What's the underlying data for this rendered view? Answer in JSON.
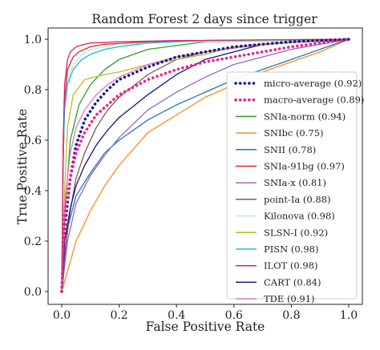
{
  "chart_data": {
    "type": "line",
    "title": "Random Forest 2 days since trigger",
    "xlabel": "False Positive Rate",
    "ylabel": "True Positive Rate",
    "xlim": [
      0.0,
      1.0
    ],
    "ylim": [
      0.0,
      1.0
    ],
    "xticks": [
      "0.0",
      "0.2",
      "0.4",
      "0.6",
      "0.8",
      "1.0"
    ],
    "yticks": [
      "0.0",
      "0.2",
      "0.4",
      "0.6",
      "0.8",
      "1.0"
    ],
    "grid": false,
    "legend_position": "lower-right",
    "series": [
      {
        "name": "micro-average (0.92)",
        "color": "#1a1a8c",
        "style": "dotted",
        "x": [
          0,
          0.01,
          0.03,
          0.05,
          0.08,
          0.12,
          0.16,
          0.2,
          0.3,
          0.4,
          0.5,
          0.6,
          0.8,
          1.0
        ],
        "y": [
          0,
          0.25,
          0.45,
          0.58,
          0.68,
          0.75,
          0.8,
          0.84,
          0.89,
          0.93,
          0.95,
          0.97,
          0.99,
          1.0
        ]
      },
      {
        "name": "macro-average (0.89)",
        "color": "#ee2288",
        "style": "dotted",
        "x": [
          0,
          0.01,
          0.03,
          0.05,
          0.08,
          0.12,
          0.16,
          0.2,
          0.3,
          0.4,
          0.5,
          0.6,
          0.8,
          1.0
        ],
        "y": [
          0,
          0.3,
          0.45,
          0.55,
          0.63,
          0.7,
          0.74,
          0.78,
          0.84,
          0.88,
          0.91,
          0.93,
          0.97,
          1.0
        ]
      },
      {
        "name": "SNIa-norm (0.94)",
        "color": "#2ca02c",
        "style": "solid",
        "x": [
          0,
          0.01,
          0.03,
          0.06,
          0.1,
          0.15,
          0.2,
          0.3,
          0.5,
          1.0
        ],
        "y": [
          0,
          0.3,
          0.6,
          0.74,
          0.82,
          0.88,
          0.92,
          0.96,
          0.99,
          1.0
        ]
      },
      {
        "name": "SNIbc (0.75)",
        "color": "#ff8c1a",
        "style": "solid",
        "x": [
          0,
          0.02,
          0.05,
          0.1,
          0.15,
          0.2,
          0.3,
          0.4,
          0.5,
          0.6,
          0.7,
          0.8,
          0.9,
          1.0
        ],
        "y": [
          0,
          0.08,
          0.2,
          0.32,
          0.42,
          0.5,
          0.63,
          0.7,
          0.77,
          0.82,
          0.87,
          0.91,
          0.95,
          1.0
        ]
      },
      {
        "name": "SNII (0.78)",
        "color": "#1f77b4",
        "style": "solid",
        "x": [
          0,
          0.02,
          0.05,
          0.1,
          0.15,
          0.2,
          0.3,
          0.4,
          0.5,
          0.6,
          0.7,
          0.8,
          0.9,
          1.0
        ],
        "y": [
          0,
          0.25,
          0.38,
          0.47,
          0.55,
          0.6,
          0.68,
          0.74,
          0.79,
          0.84,
          0.88,
          0.92,
          0.96,
          1.0
        ]
      },
      {
        "name": "SNIa-91bg (0.97)",
        "color": "#d62728",
        "style": "solid",
        "x": [
          0,
          0.005,
          0.01,
          0.02,
          0.04,
          0.06,
          0.1,
          0.15,
          0.3,
          0.5,
          1.0
        ],
        "y": [
          0,
          0.5,
          0.75,
          0.88,
          0.93,
          0.95,
          0.97,
          0.98,
          0.99,
          0.995,
          1.0
        ]
      },
      {
        "name": "SNIa-x (0.81)",
        "color": "#9467bd",
        "style": "solid",
        "x": [
          0,
          0.02,
          0.05,
          0.1,
          0.15,
          0.2,
          0.3,
          0.4,
          0.5,
          0.6,
          0.7,
          0.8,
          0.9,
          1.0
        ],
        "y": [
          0,
          0.2,
          0.35,
          0.46,
          0.54,
          0.61,
          0.72,
          0.79,
          0.85,
          0.9,
          0.93,
          0.96,
          0.98,
          1.0
        ]
      },
      {
        "name": "point-Ia (0.88)",
        "color": "#8c564b",
        "style": "solid",
        "x": [
          0,
          0.01,
          0.03,
          0.05,
          0.08,
          0.12,
          0.16,
          0.2,
          0.3,
          0.4,
          0.5,
          0.7,
          1.0
        ],
        "y": [
          0,
          0.15,
          0.32,
          0.45,
          0.55,
          0.65,
          0.72,
          0.77,
          0.86,
          0.92,
          0.95,
          0.98,
          1.0
        ]
      },
      {
        "name": "Kilonova (0.98)",
        "color": "#b8f0c8",
        "style": "solid",
        "x": [
          0,
          0.005,
          0.01,
          0.02,
          0.04,
          0.07,
          0.1,
          0.2,
          0.4,
          1.0
        ],
        "y": [
          0,
          0.55,
          0.72,
          0.83,
          0.9,
          0.94,
          0.96,
          0.98,
          0.99,
          1.0
        ]
      },
      {
        "name": "SLSN-I (0.92)",
        "color": "#bcbd22",
        "style": "solid",
        "x": [
          0,
          0.01,
          0.02,
          0.04,
          0.08,
          0.15,
          0.2,
          0.3,
          0.5,
          0.6,
          0.8,
          1.0
        ],
        "y": [
          0,
          0.4,
          0.65,
          0.78,
          0.84,
          0.86,
          0.87,
          0.9,
          0.94,
          0.97,
          0.99,
          1.0
        ]
      },
      {
        "name": "PISN (0.98)",
        "color": "#17becf",
        "style": "solid",
        "x": [
          0,
          0.005,
          0.01,
          0.02,
          0.04,
          0.07,
          0.1,
          0.15,
          0.2,
          0.3,
          0.5,
          1.0
        ],
        "y": [
          0,
          0.55,
          0.72,
          0.82,
          0.88,
          0.92,
          0.94,
          0.96,
          0.97,
          0.985,
          0.995,
          1.0
        ]
      },
      {
        "name": "ILOT (0.98)",
        "color": "#e8186e",
        "style": "solid",
        "x": [
          0,
          0.005,
          0.01,
          0.02,
          0.03,
          0.05,
          0.08,
          0.1,
          0.2,
          0.4,
          1.0
        ],
        "y": [
          0,
          0.6,
          0.82,
          0.92,
          0.95,
          0.97,
          0.98,
          0.985,
          0.99,
          0.995,
          1.0
        ]
      },
      {
        "name": "CART (0.84)",
        "color": "#141478",
        "style": "solid",
        "x": [
          0,
          0.01,
          0.03,
          0.05,
          0.08,
          0.12,
          0.16,
          0.2,
          0.3,
          0.4,
          0.5,
          0.7,
          1.0
        ],
        "y": [
          0,
          0.2,
          0.33,
          0.42,
          0.5,
          0.58,
          0.64,
          0.69,
          0.78,
          0.86,
          0.92,
          0.98,
          1.0
        ]
      },
      {
        "name": "TDE (0.91)",
        "color": "#e377c2",
        "style": "solid",
        "x": [
          0,
          0.01,
          0.03,
          0.05,
          0.08,
          0.12,
          0.16,
          0.2,
          0.3,
          0.4,
          0.5,
          0.7,
          1.0
        ],
        "y": [
          0,
          0.35,
          0.55,
          0.65,
          0.72,
          0.78,
          0.82,
          0.85,
          0.9,
          0.93,
          0.95,
          0.98,
          1.0
        ]
      }
    ]
  }
}
